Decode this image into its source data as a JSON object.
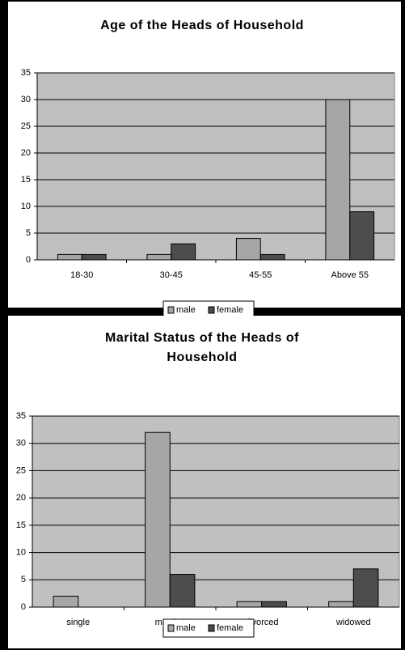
{
  "chart_data": [
    {
      "type": "bar",
      "title": "Age of the Heads of Household",
      "categories": [
        "18-30",
        "30-45",
        "45-55",
        "Above 55"
      ],
      "series": [
        {
          "name": "male",
          "color": "#a6a6a6",
          "values": [
            1,
            1,
            4,
            30
          ]
        },
        {
          "name": "female",
          "color": "#4d4d4d",
          "values": [
            1,
            3,
            1,
            9
          ]
        }
      ],
      "ylim": [
        0,
        35
      ],
      "yticks": [
        0,
        5,
        10,
        15,
        20,
        25,
        30,
        35
      ],
      "grid": true,
      "legend": "bottom"
    },
    {
      "type": "bar",
      "title": "Marital Status of the Heads of Household",
      "categories": [
        "single",
        "married",
        "divorced",
        "widowed"
      ],
      "series": [
        {
          "name": "male",
          "color": "#a6a6a6",
          "values": [
            2,
            32,
            1,
            1
          ]
        },
        {
          "name": "female",
          "color": "#4d4d4d",
          "values": [
            0,
            6,
            1,
            7
          ]
        }
      ],
      "ylim": [
        0,
        35
      ],
      "yticks": [
        0,
        5,
        10,
        15,
        20,
        25,
        30,
        35
      ],
      "grid": true,
      "legend": "bottom"
    }
  ]
}
